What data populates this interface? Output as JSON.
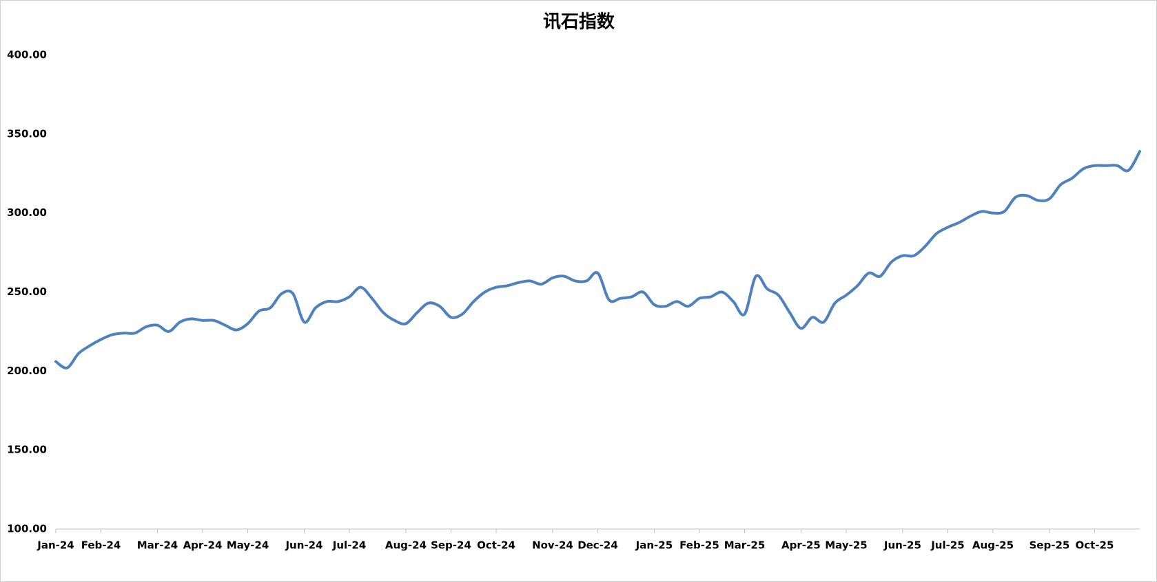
{
  "chart_data": {
    "type": "line",
    "title": "讯石指数",
    "categories": [
      "Jan-24",
      null,
      null,
      null,
      "Feb-24",
      null,
      null,
      null,
      null,
      "Mar-24",
      null,
      null,
      null,
      "Apr-24",
      null,
      null,
      null,
      "May-24",
      null,
      null,
      null,
      null,
      "Jun-24",
      null,
      null,
      null,
      "Jul-24",
      null,
      null,
      null,
      null,
      "Aug-24",
      null,
      null,
      null,
      "Sep-24",
      null,
      null,
      null,
      "Oct-24",
      null,
      null,
      null,
      null,
      "Nov-24",
      null,
      null,
      null,
      "Dec-24",
      null,
      null,
      null,
      null,
      "Jan-25",
      null,
      null,
      null,
      "Feb-25",
      null,
      null,
      null,
      "Mar-25",
      null,
      null,
      null,
      null,
      "Apr-25",
      null,
      null,
      null,
      "May-25",
      null,
      null,
      null,
      null,
      "Jun-25",
      null,
      null,
      null,
      "Jul-25",
      null,
      null,
      null,
      "Aug-25",
      null,
      null,
      null,
      null,
      "Sep-25",
      null,
      null,
      null,
      "Oct-25",
      null,
      null,
      null,
      null
    ],
    "series": [
      {
        "color": "#4f81bd",
        "values": [
          206,
          202,
          211,
          216,
          220,
          223,
          224,
          224,
          228,
          229,
          225,
          231,
          233,
          232,
          232,
          229,
          226,
          230,
          238,
          240,
          249,
          249,
          231,
          240,
          244,
          244,
          247,
          253,
          246,
          237,
          232,
          230,
          237,
          243,
          241,
          234,
          236,
          244,
          250,
          253,
          254,
          256,
          257,
          255,
          259,
          260,
          257,
          257,
          262,
          245,
          246,
          247,
          250,
          242,
          241,
          244,
          241,
          246,
          247,
          250,
          244,
          236,
          260,
          252,
          248,
          237,
          227,
          234,
          231,
          243,
          248,
          254,
          262,
          260,
          269,
          273,
          273,
          279,
          287,
          291,
          294,
          298,
          301,
          300,
          301,
          310,
          311,
          308,
          309,
          318,
          322,
          328,
          330,
          330,
          330,
          327,
          339
        ]
      }
    ],
    "ylim": [
      100,
      400
    ],
    "yticks": [
      {
        "value": 100,
        "label": "100.00"
      },
      {
        "value": 150,
        "label": "150.00"
      },
      {
        "value": 200,
        "label": "200.00"
      },
      {
        "value": 250,
        "label": "250.00"
      },
      {
        "value": 300,
        "label": "300.00"
      },
      {
        "value": 350,
        "label": "350.00"
      },
      {
        "value": 400,
        "label": "400.00"
      }
    ],
    "grid": false
  }
}
